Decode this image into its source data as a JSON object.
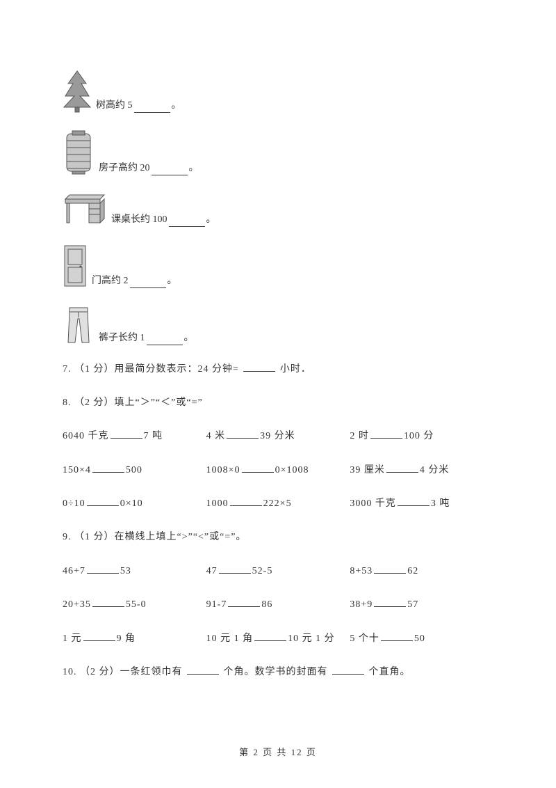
{
  "items": {
    "tree": {
      "label_pre": "树高约 5",
      "label_post": "。"
    },
    "house": {
      "label_pre": "房子高约 20",
      "label_post": "。"
    },
    "desk": {
      "label_pre": "课桌长约 100",
      "label_post": "。"
    },
    "door": {
      "label_pre": "门高约 2",
      "label_post": "。"
    },
    "pants": {
      "label_pre": "裤子长约 1",
      "label_post": "。"
    }
  },
  "q7": "7. （1 分）用最简分数表示：24 分钟=",
  "q7_post": "小时．",
  "q8": "8. （2 分）填上“＞”“＜”或“=”",
  "q8_rows": [
    {
      "a_pre": "6040 千克",
      "a_post": "7 吨",
      "b_pre": "4 米",
      "b_post": "39 分米",
      "c_pre": "2 时",
      "c_post": "100 分"
    },
    {
      "a_pre": "150×4",
      "a_post": "500",
      "b_pre": "1008×0",
      "b_post": "0×1008",
      "c_pre": "39 厘米",
      "c_post": "4 分米"
    },
    {
      "a_pre": "0÷10",
      "a_post": "0×10",
      "b_pre": "1000",
      "b_post": "222×5",
      "c_pre": "3000 千克",
      "c_post": "3 吨"
    }
  ],
  "q9": "9. （1 分）在横线上填上“>”“<”或“=”。",
  "q9_rows": [
    {
      "a_pre": "46+7",
      "a_post": "53",
      "b_pre": "47",
      "b_post": "52-5",
      "c_pre": "8+53",
      "c_post": "62"
    },
    {
      "a_pre": "20+35",
      "a_post": "55-0",
      "b_pre": "91-7",
      "b_post": "86",
      "c_pre": "38+9",
      "c_post": "57"
    },
    {
      "a_pre": "1 元",
      "a_post": "9 角",
      "b_pre": "10 元 1 角",
      "b_post": "10 元 1 分",
      "c_pre": "5 个十",
      "c_post": "50"
    }
  ],
  "q10_pre": "10. （2 分）一条红领巾有",
  "q10_mid": "个角。数学书的封面有",
  "q10_post": "个直角。",
  "footer": "第 2 页 共 12 页",
  "colors": {
    "icon_fill": "#b9b9b9",
    "icon_stroke": "#555555",
    "text": "#333333"
  }
}
